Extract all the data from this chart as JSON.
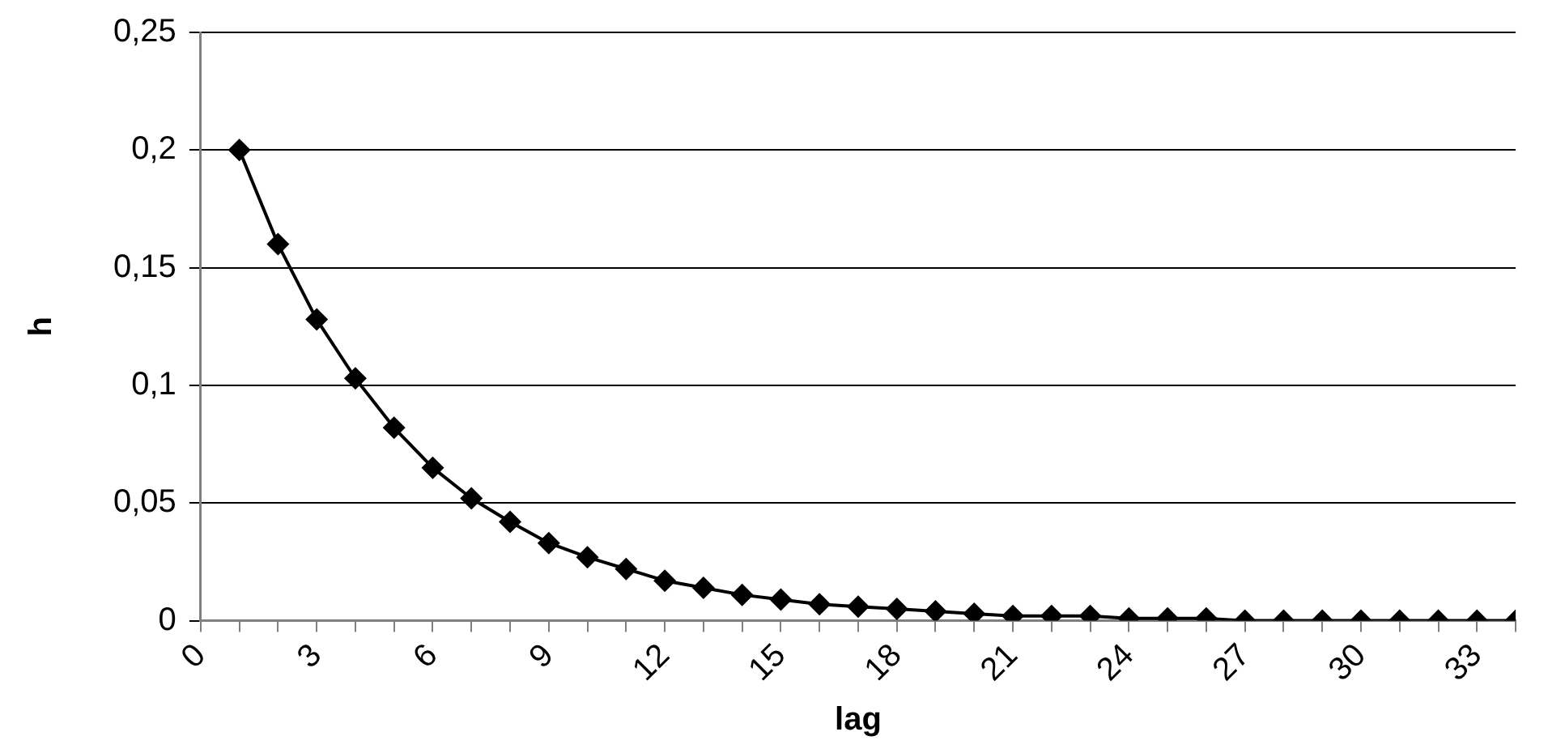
{
  "chart_data": {
    "type": "line",
    "xlabel": "lag",
    "ylabel": "h",
    "x": [
      1,
      2,
      3,
      4,
      5,
      6,
      7,
      8,
      9,
      10,
      11,
      12,
      13,
      14,
      15,
      16,
      17,
      18,
      19,
      20,
      21,
      22,
      23,
      24,
      25,
      26,
      27,
      28,
      29,
      30,
      31,
      32,
      33,
      34
    ],
    "series": [
      {
        "color": "#000000",
        "values": [
          0.2,
          0.16,
          0.128,
          0.103,
          0.082,
          0.065,
          0.052,
          0.042,
          0.033,
          0.027,
          0.022,
          0.017,
          0.014,
          0.011,
          0.009,
          0.007,
          0.006,
          0.005,
          0.004,
          0.003,
          0.002,
          0.002,
          0.002,
          0.001,
          0.001,
          0.001,
          0,
          0,
          0,
          0,
          0,
          0,
          0,
          0
        ]
      }
    ],
    "xlim": [
      0,
      34
    ],
    "xticks": [
      0,
      {
        "value": 1,
        "label": null
      },
      {
        "value": 2,
        "label": null
      },
      3,
      {
        "value": 4,
        "label": null
      },
      {
        "value": 5,
        "label": null
      },
      6,
      {
        "value": 7,
        "label": null
      },
      {
        "value": 8,
        "label": null
      },
      9,
      {
        "value": 10,
        "label": null
      },
      {
        "value": 11,
        "label": null
      },
      12,
      {
        "value": 13,
        "label": null
      },
      {
        "value": 14,
        "label": null
      },
      15,
      {
        "value": 16,
        "label": null
      },
      {
        "value": 17,
        "label": null
      },
      18,
      {
        "value": 19,
        "label": null
      },
      {
        "value": 20,
        "label": null
      },
      21,
      {
        "value": 22,
        "label": null
      },
      {
        "value": 23,
        "label": null
      },
      24,
      {
        "value": 25,
        "label": null
      },
      {
        "value": 26,
        "label": null
      },
      27,
      {
        "value": 28,
        "label": null
      },
      {
        "value": 29,
        "label": null
      },
      30,
      {
        "value": 31,
        "label": null
      },
      {
        "value": 32,
        "label": null
      },
      33,
      {
        "value": 34,
        "label": null
      }
    ],
    "ylim": [
      0,
      0.25
    ],
    "yticks": [
      0,
      {
        "value": 0.05,
        "label": "0,05"
      },
      {
        "value": 0.1,
        "label": "0,1"
      },
      {
        "value": 0.15,
        "label": "0,15"
      },
      {
        "value": 0.2,
        "label": "0,2"
      },
      {
        "value": 0.25,
        "label": "0,25"
      }
    ],
    "grid": "y",
    "legend": false,
    "marker": "diamond",
    "line_style": "solid"
  }
}
